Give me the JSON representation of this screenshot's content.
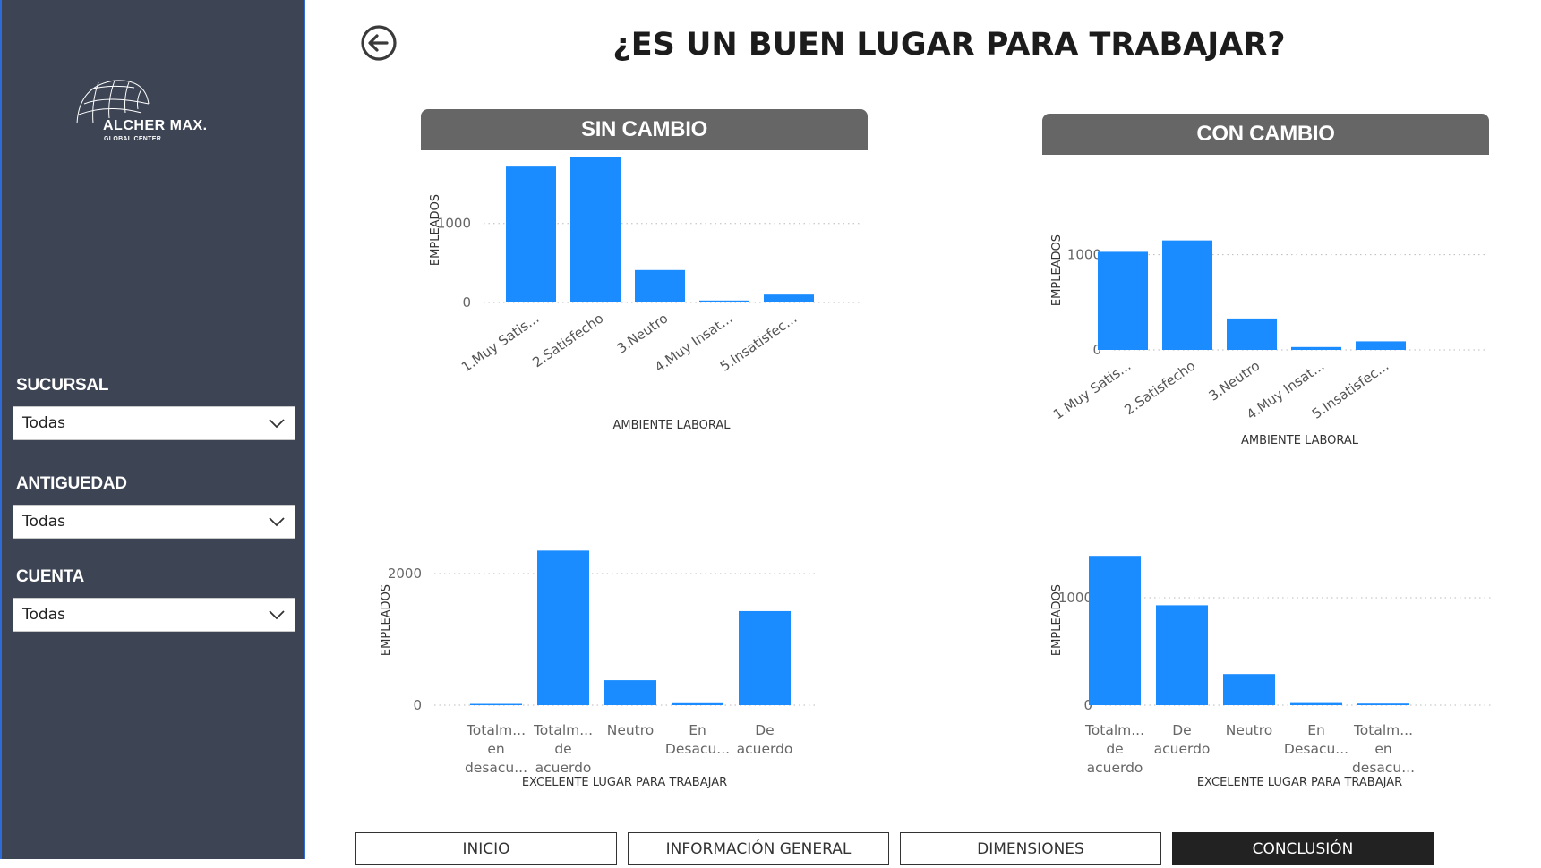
{
  "page": {
    "title": "¿ES UN BUEN LUGAR PARA TRABAJAR?"
  },
  "logo": {
    "name": "ALCHER MAX.",
    "subtitle": "GLOBAL CENTER"
  },
  "filters": [
    {
      "label": "SUCURSAL",
      "value": "Todas"
    },
    {
      "label": "ANTIGUEDAD",
      "value": "Todas"
    },
    {
      "label": "CUENTA",
      "value": "Todas"
    }
  ],
  "sections": {
    "left": "SIN CAMBIO",
    "right": "CON CAMBIO"
  },
  "nav": [
    {
      "label": "INICIO",
      "active": false
    },
    {
      "label": "INFORMACIÓN GENERAL",
      "active": false
    },
    {
      "label": "DIMENSIONES",
      "active": false
    },
    {
      "label": "CONCLUSIÓN",
      "active": true
    }
  ],
  "colors": {
    "bar": "#1a8cff",
    "sidebar": "#3d4454",
    "header": "#666666",
    "grid": "#bbbbbb"
  },
  "icons": {
    "back": "arrow-left-circle-icon",
    "dropdown": "chevron-down-icon",
    "logo": "globe-icon"
  },
  "chart_data": [
    {
      "id": "sin-ambiente",
      "type": "bar",
      "categories": [
        "1.Muy Satis...",
        "2.Satisfecho",
        "3.Neutro",
        "4.Muy Insat...",
        "5.Insatisfec..."
      ],
      "values": [
        1720,
        1950,
        410,
        25,
        100
      ],
      "xlabel": "AMBIENTE LABORAL",
      "ylabel": "EMPLEADOS",
      "yticks": [
        0,
        1000,
        2000
      ],
      "ylim": [
        0,
        2050
      ],
      "label_style": "rotated",
      "grid": true
    },
    {
      "id": "con-ambiente",
      "type": "bar",
      "categories": [
        "1.Muy Satis...",
        "2.Satisfecho",
        "3.Neutro",
        "4.Muy Insat...",
        "5.Insatisfec..."
      ],
      "values": [
        1030,
        1150,
        330,
        30,
        90
      ],
      "xlabel": "AMBIENTE LABORAL",
      "ylabel": "EMPLEADOS",
      "yticks": [
        0,
        1000
      ],
      "ylim": [
        0,
        1250
      ],
      "label_style": "rotated",
      "grid": true
    },
    {
      "id": "sin-excelente",
      "type": "bar",
      "categories": [
        [
          "Totalm...",
          "en",
          "desacu..."
        ],
        [
          "Totalm...",
          "de",
          "acuerdo"
        ],
        [
          "Neutro"
        ],
        [
          "En",
          "Desacu..."
        ],
        [
          "De",
          "acuerdo"
        ]
      ],
      "values": [
        20,
        2350,
        380,
        30,
        1430
      ],
      "xlabel": "EXCELENTE LUGAR PARA TRABAJAR",
      "ylabel": "EMPLEADOS",
      "yticks": [
        0,
        2000
      ],
      "ylim": [
        0,
        2450
      ],
      "label_style": "wrapped",
      "grid": true
    },
    {
      "id": "con-excelente",
      "type": "bar",
      "categories": [
        [
          "Totalm...",
          "de",
          "acuerdo"
        ],
        [
          "De",
          "acuerdo"
        ],
        [
          "Neutro"
        ],
        [
          "En",
          "Desacu..."
        ],
        [
          "Totalm...",
          "en",
          "desacu..."
        ]
      ],
      "values": [
        1390,
        930,
        290,
        20,
        15
      ],
      "xlabel": "EXCELENTE LUGAR PARA TRABAJAR",
      "ylabel": "EMPLEADOS",
      "yticks": [
        0,
        1000
      ],
      "ylim": [
        0,
        1450
      ],
      "label_style": "wrapped",
      "grid": true
    }
  ]
}
